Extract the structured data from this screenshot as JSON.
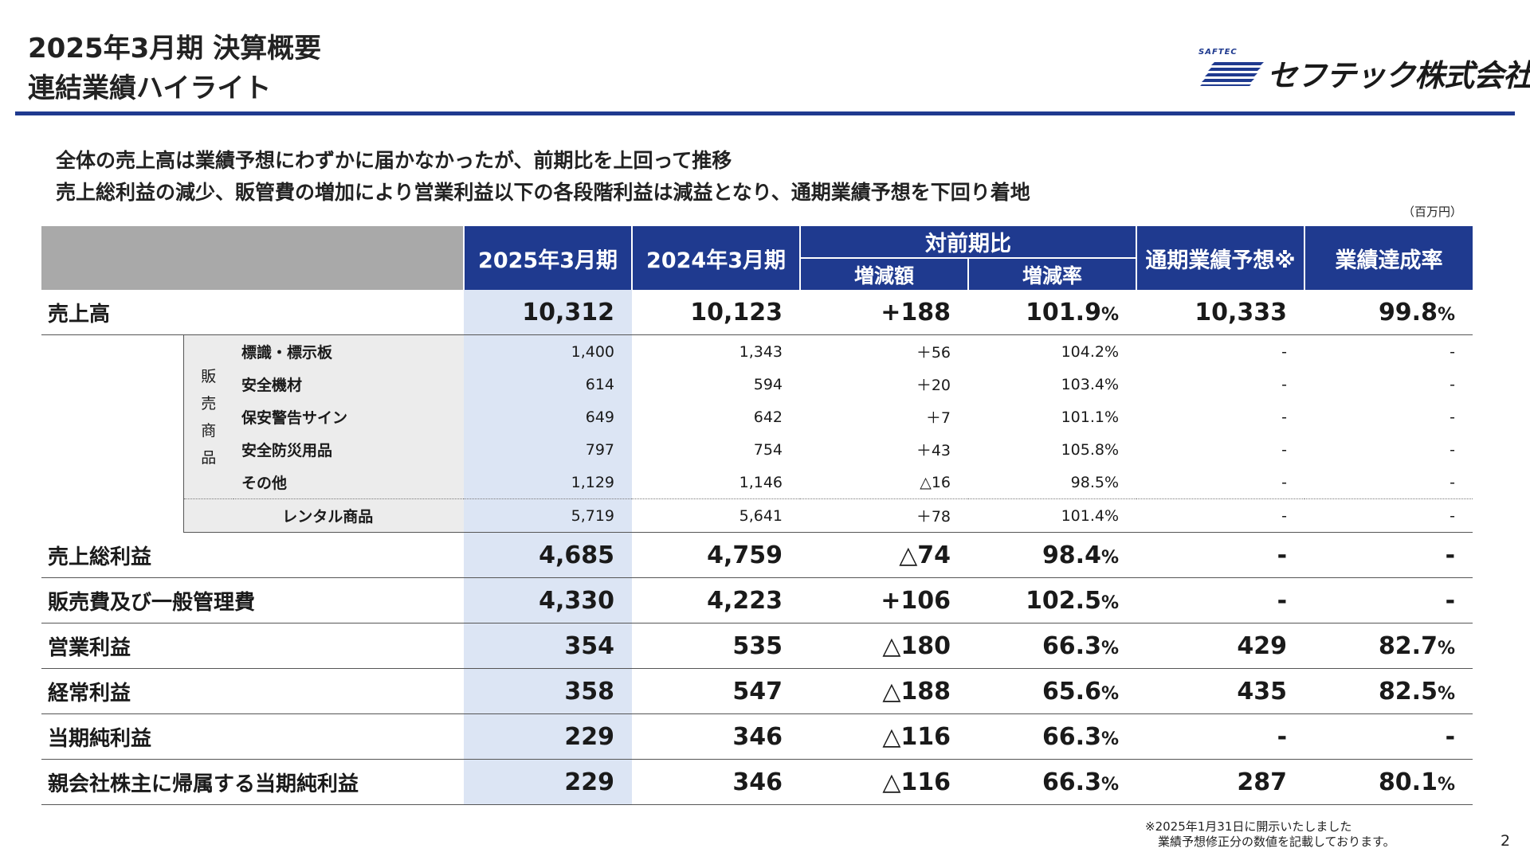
{
  "header": {
    "title_line1": "2025年3月期 決算概要",
    "title_line2": "連結業績ハイライト",
    "logo_small": "SAFTEC",
    "logo_text": "セフテック株式会社",
    "brand_color": "#1f3a8f"
  },
  "summary": {
    "line1": "全体の売上高は業績予想にわずかに届かなかったが、前期比を上回って推移",
    "line2": "売上総利益の減少、販管費の増加により営業利益以下の各段階利益は減益となり、通期業績予想を下回り着地"
  },
  "unit_label": "（百万円）",
  "table": {
    "headers": {
      "fy2025": "2025年3月期",
      "fy2024": "2024年3月期",
      "yoy": "対前期比",
      "yoy_amount": "増減額",
      "yoy_rate": "増減率",
      "forecast": "通期業績予想※",
      "achievement": "業績達成率"
    },
    "sales": {
      "label": "売上高",
      "fy2025": "10,312",
      "fy2024": "10,123",
      "diff": "+188",
      "rate": "101.9",
      "forecast": "10,333",
      "achievement": "99.8"
    },
    "merch_group": {
      "label_chars": [
        "販",
        "売",
        "商",
        "品"
      ]
    },
    "merch_items": [
      {
        "label": "標識・標示板",
        "fy2025": "1,400",
        "fy2024": "1,343",
        "diff": "＋56",
        "rate": "104.2%",
        "forecast": "-",
        "achievement": "-"
      },
      {
        "label": "安全機材",
        "fy2025": "614",
        "fy2024": "594",
        "diff": "＋20",
        "rate": "103.4%",
        "forecast": "-",
        "achievement": "-"
      },
      {
        "label": "保安警告サイン",
        "fy2025": "649",
        "fy2024": "642",
        "diff": "＋7",
        "rate": "101.1%",
        "forecast": "-",
        "achievement": "-"
      },
      {
        "label": "安全防災用品",
        "fy2025": "797",
        "fy2024": "754",
        "diff": "＋43",
        "rate": "105.8%",
        "forecast": "-",
        "achievement": "-"
      },
      {
        "label": "その他",
        "fy2025": "1,129",
        "fy2024": "1,146",
        "diff": "△16",
        "rate": "98.5%",
        "forecast": "-",
        "achievement": "-"
      }
    ],
    "rental": {
      "label": "レンタル商品",
      "fy2025": "5,719",
      "fy2024": "5,641",
      "diff": "＋78",
      "rate": "101.4%",
      "forecast": "-",
      "achievement": "-"
    },
    "rows": [
      {
        "label": "売上総利益",
        "fy2025": "4,685",
        "fy2024": "4,759",
        "diff": "△74",
        "rate": "98.4",
        "forecast": "-",
        "achievement": "-"
      },
      {
        "label": "販売費及び一般管理費",
        "fy2025": "4,330",
        "fy2024": "4,223",
        "diff": "+106",
        "rate": "102.5",
        "forecast": "-",
        "achievement": "-"
      },
      {
        "label": "営業利益",
        "fy2025": "354",
        "fy2024": "535",
        "diff": "△180",
        "rate": "66.3",
        "forecast": "429",
        "achievement": "82.7"
      },
      {
        "label": "経常利益",
        "fy2025": "358",
        "fy2024": "547",
        "diff": "△188",
        "rate": "65.6",
        "forecast": "435",
        "achievement": "82.5"
      },
      {
        "label": "当期純利益",
        "fy2025": "229",
        "fy2024": "346",
        "diff": "△116",
        "rate": "66.3",
        "forecast": "-",
        "achievement": "-"
      },
      {
        "label": "親会社株主に帰属する当期純利益",
        "fy2025": "229",
        "fy2024": "346",
        "diff": "△116",
        "rate": "66.3",
        "forecast": "287",
        "achievement": "80.1"
      }
    ],
    "pct_sign": "%"
  },
  "footnote": {
    "line1": "※2025年1月31日に開示いたしました",
    "line2": "業績予想修正分の数値を記載しております。"
  },
  "page_number": "2"
}
